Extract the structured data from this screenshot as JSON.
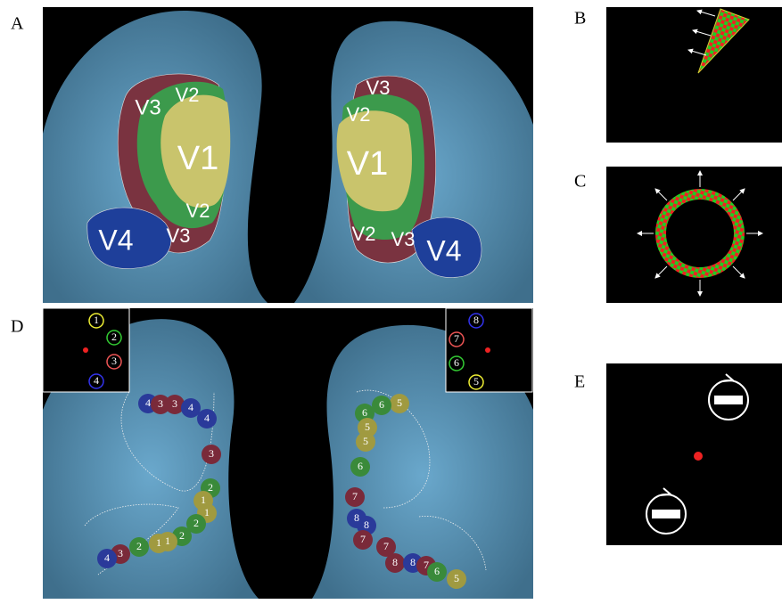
{
  "panel_a": {
    "letter": "A",
    "labels": [
      "V3",
      "V2",
      "V1",
      "V2",
      "V3",
      "V4",
      "V3",
      "V2",
      "V1",
      "V2",
      "V3",
      "V4"
    ]
  },
  "panel_b": {
    "letter": "B"
  },
  "panel_c": {
    "letter": "C"
  },
  "panel_d": {
    "letter": "D",
    "inset_left": [
      "1",
      "2",
      "3",
      "4"
    ],
    "inset_right": [
      "8",
      "7",
      "6",
      "5"
    ],
    "left_labels": [
      "4",
      "3",
      "3",
      "4",
      "4",
      "3",
      "2",
      "1",
      "1",
      "2",
      "2",
      "1",
      "1",
      "2",
      "3",
      "4"
    ],
    "right_labels": [
      "5",
      "6",
      "6",
      "5",
      "5",
      "6",
      "7",
      "8",
      "8",
      "7",
      "7",
      "8",
      "8",
      "7",
      "6",
      "5"
    ]
  },
  "panel_e": {
    "letter": "E"
  }
}
